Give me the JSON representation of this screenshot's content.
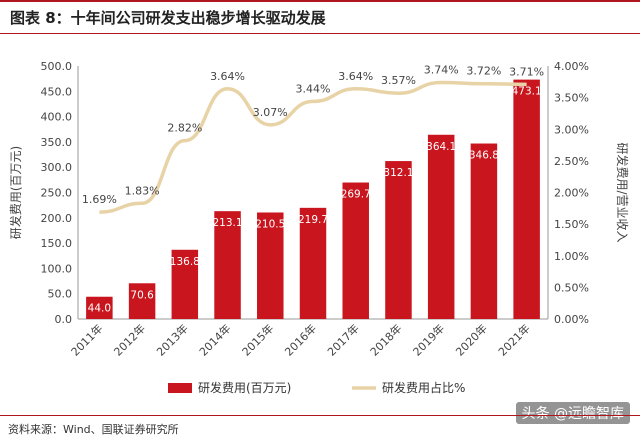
{
  "header": {
    "title": "图表 8：十年间公司研发支出稳步增长驱动发展"
  },
  "footer": {
    "source": "资料来源：Wind、国联证券研究所"
  },
  "watermark": "头条 @远瞻智库",
  "colors": {
    "bar": "#c9151e",
    "line": "#e8d3a6",
    "accent": "#b0161e"
  },
  "chart_data": {
    "type": "bar",
    "categories": [
      "2011年",
      "2012年",
      "2013年",
      "2014年",
      "2015年",
      "2016年",
      "2017年",
      "2018年",
      "2019年",
      "2020年",
      "2021年"
    ],
    "series": [
      {
        "name": "研发费用(百万元)",
        "type": "bar",
        "axis": "left",
        "values": [
          44.0,
          70.6,
          136.8,
          213.1,
          210.5,
          219.7,
          269.7,
          312.1,
          364.1,
          346.8,
          473.1
        ],
        "labels": [
          "44.0",
          "70.6",
          "136.8",
          "213.1",
          "210.5",
          "219.7",
          "269.7",
          "312.1",
          "364.1",
          "346.8",
          "473.1"
        ]
      },
      {
        "name": "研发费用占比%",
        "type": "line",
        "axis": "right",
        "values": [
          1.69,
          1.83,
          2.82,
          3.64,
          3.07,
          3.44,
          3.64,
          3.57,
          3.74,
          3.72,
          3.71
        ],
        "labels": [
          "1.69%",
          "1.83%",
          "2.82%",
          "3.64%",
          "3.07%",
          "3.44%",
          "3.64%",
          "3.57%",
          "3.74%",
          "3.72%",
          "3.71%"
        ]
      }
    ],
    "ylabel": "研发费用(百万元)",
    "y2label": "研发费用/营业收入",
    "ylim": [
      0,
      500
    ],
    "y2lim": [
      0,
      4
    ],
    "yticks": [
      "0.0",
      "50.0",
      "100.0",
      "150.0",
      "200.0",
      "250.0",
      "300.0",
      "350.0",
      "400.0",
      "450.0",
      "500.0"
    ],
    "y2ticks": [
      "0.00%",
      "0.50%",
      "1.00%",
      "1.50%",
      "2.00%",
      "2.50%",
      "3.00%",
      "3.50%",
      "4.00%"
    ],
    "grid": false,
    "legend_position": "bottom"
  }
}
